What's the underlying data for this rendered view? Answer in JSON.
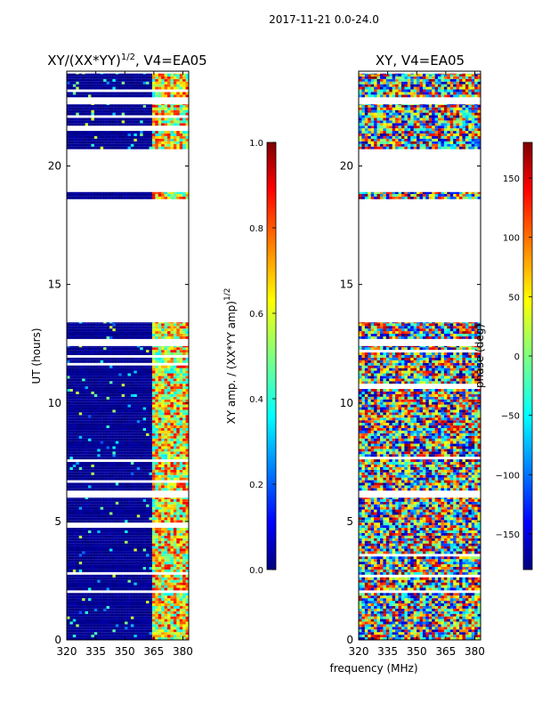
{
  "suptitle": "2017-11-21 0.0-24.0",
  "shared_xlabel": "frequency (MHz)",
  "colors": {
    "navy": "#00007f",
    "white": "#ffffff",
    "jet": [
      "#00007f",
      "#0000ff",
      "#007fff",
      "#00ffff",
      "#7fff7f",
      "#ffff00",
      "#ff7f00",
      "#ff0000",
      "#7f0000"
    ]
  },
  "chart_data": [
    {
      "type": "heatmap",
      "id": "left",
      "title_main": "XY/(XX*YY)",
      "title_sup": "1/2",
      "title_suffix": ", V4=EA05",
      "xlabel": "",
      "ylabel": "UT (hours)",
      "xlim": [
        320,
        383
      ],
      "ylim": [
        0,
        24
      ],
      "xticks": [
        "320",
        "335",
        "350",
        "365",
        "380"
      ],
      "xtick_values": [
        320,
        335,
        350,
        365,
        380
      ],
      "yticks": [
        "0",
        "5",
        "10",
        "15",
        "20"
      ],
      "ytick_values": [
        0,
        5,
        10,
        15,
        20
      ],
      "data_bands_ut": [
        [
          0.0,
          6.0
        ],
        [
          6.3,
          12.4
        ],
        [
          12.7,
          13.4
        ],
        [
          18.6,
          18.9
        ],
        [
          20.6,
          22.6
        ],
        [
          22.9,
          23.9
        ]
      ],
      "high_amp_freq_range": [
        363,
        382
      ],
      "colorbar": {
        "label_main": "XY amp. / (XX*YY amp)",
        "label_sup": "1/2",
        "range": [
          0.0,
          1.0
        ],
        "ticks": [
          "0.0",
          "0.2",
          "0.4",
          "0.6",
          "0.8",
          "1.0"
        ],
        "tick_values": [
          0.0,
          0.2,
          0.4,
          0.6,
          0.8,
          1.0
        ]
      }
    },
    {
      "type": "heatmap",
      "id": "right",
      "title": "XY, V4=EA05",
      "xlabel": "",
      "ylabel": "",
      "xlim": [
        320,
        383
      ],
      "ylim": [
        0,
        24
      ],
      "xticks": [
        "320",
        "335",
        "350",
        "365",
        "380"
      ],
      "xtick_values": [
        320,
        335,
        350,
        365,
        380
      ],
      "yticks": [
        "0",
        "5",
        "10",
        "15",
        "20"
      ],
      "ytick_values": [
        0,
        5,
        10,
        15,
        20
      ],
      "data_bands_ut": [
        [
          0.0,
          6.0
        ],
        [
          6.3,
          12.4
        ],
        [
          12.7,
          13.4
        ],
        [
          18.6,
          18.9
        ],
        [
          20.6,
          22.6
        ],
        [
          22.9,
          23.9
        ]
      ],
      "colorbar": {
        "label": "phase (deg)",
        "range": [
          -180,
          180
        ],
        "ticks": [
          "−150",
          "−100",
          "−50",
          "0",
          "50",
          "100",
          "150"
        ],
        "tick_values": [
          -150,
          -100,
          -50,
          0,
          50,
          100,
          150
        ]
      }
    }
  ]
}
